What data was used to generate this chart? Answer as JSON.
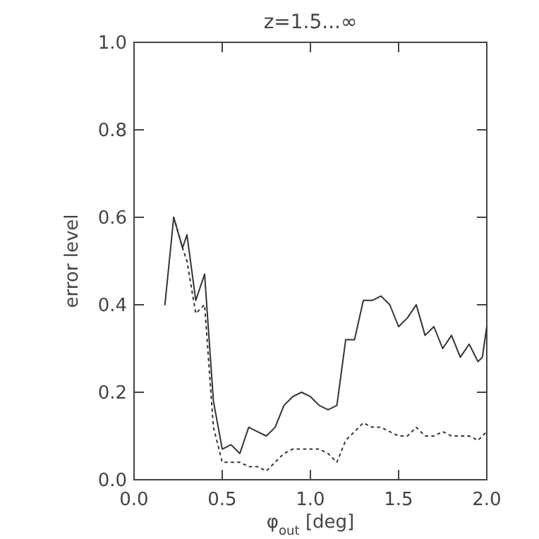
{
  "chart_data": {
    "type": "line",
    "title": "z=1.5...∞",
    "xlabel": "φ$_{out}$ [deg]",
    "ylabel": "error level",
    "xlim": [
      0,
      2
    ],
    "ylim": [
      0,
      1
    ],
    "xticks": [
      {
        "value": 0,
        "label": "0.0"
      },
      {
        "value": 0.5,
        "label": "0.5"
      },
      {
        "value": 1,
        "label": "1.0"
      },
      {
        "value": 1.5,
        "label": "1.5"
      },
      {
        "value": 2,
        "label": "2.0"
      }
    ],
    "yticks": [
      {
        "value": 0,
        "label": "0.0"
      },
      {
        "value": 0.2,
        "label": "0.2"
      },
      {
        "value": 0.4,
        "label": "0.4"
      },
      {
        "value": 0.6,
        "label": "0.6"
      },
      {
        "value": 0.8,
        "label": "0.8"
      },
      {
        "value": 1,
        "label": "1.0"
      }
    ],
    "grid": false,
    "marker": "none",
    "series": [
      {
        "color": "#333333",
        "line_style": "solid",
        "x": [
          0.175,
          0.225,
          0.275,
          0.3,
          0.35,
          0.4,
          0.45,
          0.5,
          0.55,
          0.6,
          0.65,
          0.7,
          0.75,
          0.8,
          0.85,
          0.9,
          0.95,
          1.0,
          1.05,
          1.1,
          1.15,
          1.2,
          1.25,
          1.3,
          1.35,
          1.4,
          1.45,
          1.5,
          1.55,
          1.6,
          1.65,
          1.7,
          1.75,
          1.8,
          1.85,
          1.9,
          1.95,
          1.975,
          2.0
        ],
        "values": [
          0.4,
          0.6,
          0.53,
          0.56,
          0.41,
          0.47,
          0.18,
          0.07,
          0.08,
          0.06,
          0.12,
          0.11,
          0.1,
          0.12,
          0.17,
          0.19,
          0.2,
          0.19,
          0.17,
          0.16,
          0.17,
          0.32,
          0.32,
          0.41,
          0.41,
          0.42,
          0.4,
          0.35,
          0.37,
          0.4,
          0.33,
          0.35,
          0.3,
          0.33,
          0.28,
          0.31,
          0.27,
          0.28,
          0.35
        ]
      },
      {
        "color": "#333333",
        "line_style": "dotted",
        "x": [
          0.225,
          0.275,
          0.3,
          0.35,
          0.4,
          0.45,
          0.5,
          0.55,
          0.6,
          0.65,
          0.7,
          0.75,
          0.8,
          0.85,
          0.9,
          0.95,
          1.0,
          1.05,
          1.1,
          1.15,
          1.2,
          1.25,
          1.3,
          1.35,
          1.4,
          1.45,
          1.5,
          1.55,
          1.6,
          1.65,
          1.7,
          1.75,
          1.8,
          1.85,
          1.9,
          1.95,
          2.0
        ],
        "values": [
          0.6,
          0.53,
          0.5,
          0.38,
          0.4,
          0.12,
          0.04,
          0.04,
          0.04,
          0.03,
          0.03,
          0.02,
          0.04,
          0.06,
          0.07,
          0.07,
          0.07,
          0.07,
          0.06,
          0.04,
          0.09,
          0.11,
          0.13,
          0.12,
          0.12,
          0.11,
          0.1,
          0.1,
          0.12,
          0.1,
          0.1,
          0.11,
          0.1,
          0.1,
          0.1,
          0.09,
          0.11
        ]
      }
    ]
  }
}
